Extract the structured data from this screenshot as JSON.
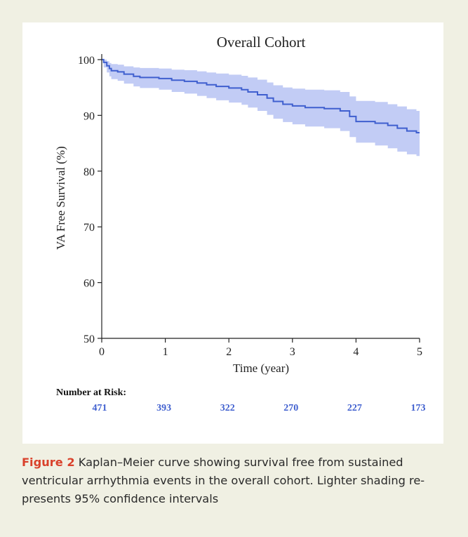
{
  "figure": {
    "label": "Figure 2",
    "caption_lines": [
      "Kaplan–Meier curve showing survival free from sustained",
      "ventricular arrhythmia events in the overall cohort. Lighter shading re-",
      "presents 95% confidence intervals"
    ]
  },
  "risk_table": {
    "title": "Number at Risk:",
    "values": [
      "471",
      "393",
      "322",
      "270",
      "227",
      "173"
    ]
  },
  "colors": {
    "background": "#f0f0e3",
    "line": "#3f5fcf",
    "band": "#b3bff2",
    "figure_label": "#d9412b",
    "risk_numbers": "#3f5fcf"
  },
  "chart_data": {
    "type": "line",
    "title": "Overall Cohort",
    "xlabel": "Time (year)",
    "ylabel": "VA Free Survival (%)",
    "xlim": [
      0,
      5
    ],
    "ylim": [
      50,
      101
    ],
    "x_ticks": [
      0,
      1,
      2,
      3,
      4,
      5
    ],
    "y_ticks": [
      50,
      60,
      70,
      80,
      90,
      100
    ],
    "step": true,
    "grid": false,
    "series": [
      {
        "x": [
          0,
          0.03,
          0.08,
          0.12,
          0.15,
          0.25,
          0.35,
          0.5,
          0.6,
          0.9,
          1.1,
          1.3,
          1.5,
          1.65,
          1.8,
          2.0,
          2.2,
          2.3,
          2.45,
          2.6,
          2.7,
          2.85,
          3.0,
          3.2,
          3.5,
          3.75,
          3.9,
          4.0,
          4.3,
          4.5,
          4.65,
          4.8,
          4.95,
          5.0
        ],
        "y": [
          100,
          99.5,
          98.9,
          98.4,
          98.0,
          97.8,
          97.4,
          97.0,
          96.8,
          96.6,
          96.3,
          96.1,
          95.8,
          95.5,
          95.2,
          94.9,
          94.6,
          94.2,
          93.7,
          93.1,
          92.5,
          92.0,
          91.7,
          91.4,
          91.2,
          90.8,
          89.8,
          88.9,
          88.6,
          88.2,
          87.7,
          87.2,
          86.9,
          86.9
        ],
        "lower": [
          100,
          98.6,
          97.7,
          97.0,
          96.5,
          96.2,
          95.7,
          95.2,
          94.9,
          94.6,
          94.2,
          93.9,
          93.5,
          93.1,
          92.7,
          92.3,
          91.9,
          91.4,
          90.8,
          90.1,
          89.4,
          88.8,
          88.4,
          88.0,
          87.7,
          87.2,
          86.1,
          85.1,
          84.6,
          84.1,
          83.5,
          83.0,
          82.7,
          82.6
        ],
        "upper": [
          100,
          100,
          99.7,
          99.4,
          99.2,
          99.1,
          98.8,
          98.6,
          98.5,
          98.4,
          98.2,
          98.1,
          97.9,
          97.7,
          97.5,
          97.3,
          97.1,
          96.8,
          96.4,
          95.9,
          95.4,
          95.0,
          94.8,
          94.6,
          94.5,
          94.2,
          93.4,
          92.6,
          92.4,
          92.0,
          91.6,
          91.1,
          90.8,
          90.7
        ]
      }
    ]
  }
}
